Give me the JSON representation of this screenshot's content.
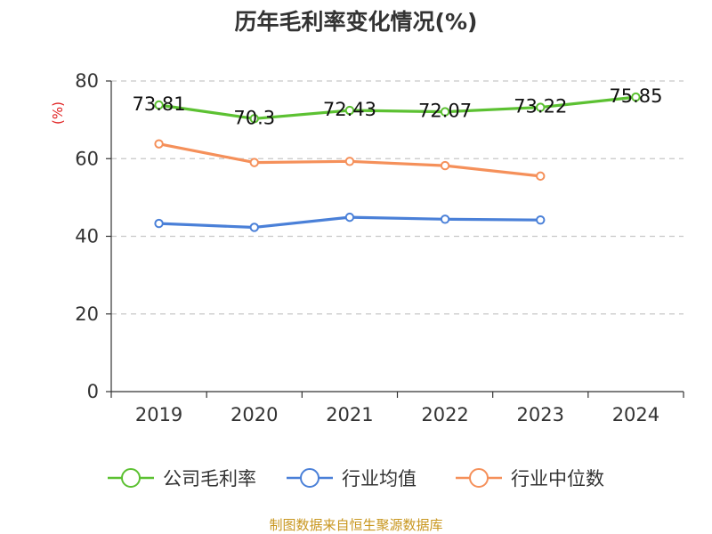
{
  "chart_data": {
    "type": "line",
    "title": "历年毛利率变化情况(%)",
    "ylabel": "(%)",
    "xlabel": "",
    "categories": [
      "2019",
      "2020",
      "2021",
      "2022",
      "2023",
      "2024"
    ],
    "ylim": [
      0,
      80
    ],
    "yticks": [
      0,
      20,
      40,
      60,
      80
    ],
    "grid": true,
    "legend_position": "bottom",
    "series": [
      {
        "name": "公司毛利率",
        "color": "#5cc132",
        "values": [
          73.81,
          70.3,
          72.43,
          72.07,
          73.22,
          75.85
        ],
        "labels": [
          "73.81",
          "70.3",
          "72.43",
          "72.07",
          "73.22",
          "75.85"
        ]
      },
      {
        "name": "行业均值",
        "color": "#4a80d8",
        "values": [
          43.3,
          42.3,
          44.9,
          44.4,
          44.2,
          null
        ]
      },
      {
        "name": "行业中位数",
        "color": "#f5905a",
        "values": [
          63.8,
          59.0,
          59.3,
          58.2,
          55.5,
          null
        ]
      }
    ],
    "source": "制图数据来自恒生聚源数据库"
  }
}
